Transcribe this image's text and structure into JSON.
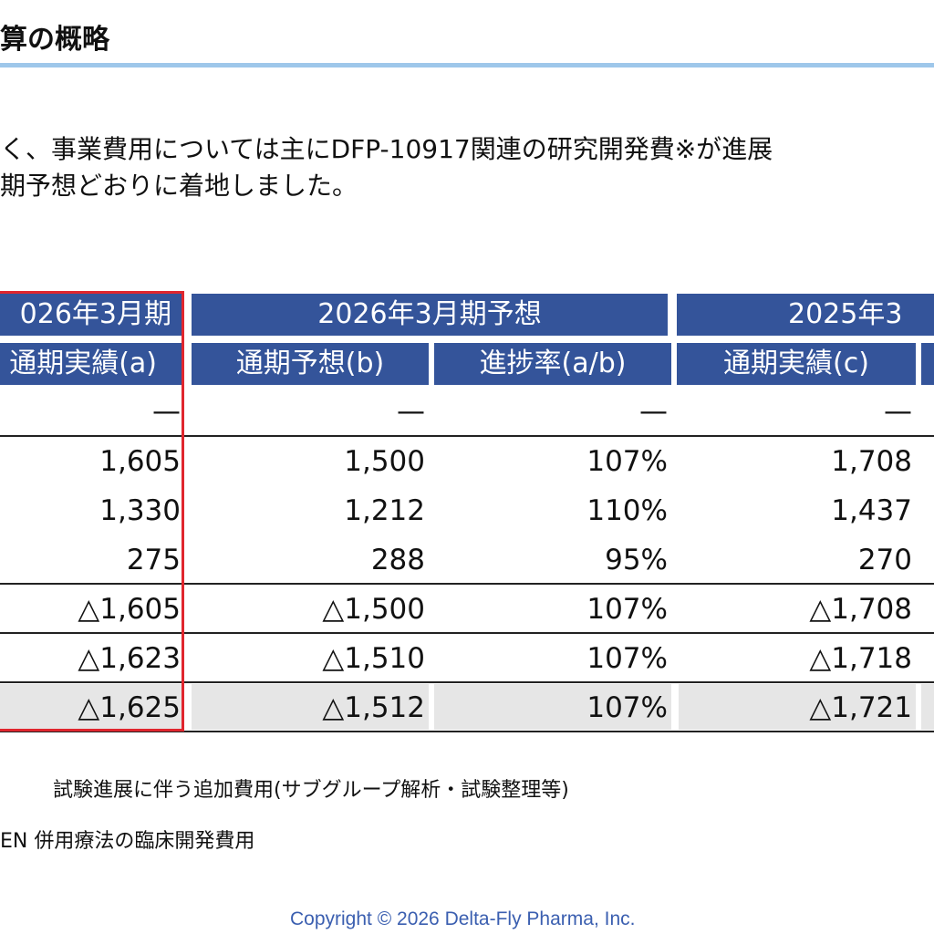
{
  "title": "算の概略",
  "intro": {
    "line1": "く、事業費用については主にDFP-10917関連の研究開発費※が進展",
    "line2": "期予想どおりに着地しました。"
  },
  "table": {
    "group_headers": [
      "026年3月期",
      "2026年3月期予想",
      "2025年3"
    ],
    "sub_headers": [
      "通期実績(a)",
      "通期予想(b)",
      "進捗率(a/b)",
      "通期実績(c)"
    ],
    "rows": [
      [
        "—",
        "—",
        "—",
        "—"
      ],
      [
        "1,605",
        "1,500",
        "107%",
        "1,708"
      ],
      [
        "1,330",
        "1,212",
        "110%",
        "1,437"
      ],
      [
        "275",
        "288",
        "95%",
        "270"
      ],
      [
        "△1,605",
        "△1,500",
        "107%",
        "△1,708"
      ],
      [
        "△1,623",
        "△1,510",
        "107%",
        "△1,718"
      ],
      [
        "△1,625",
        "△1,512",
        "107%",
        "△1,721"
      ]
    ]
  },
  "notes": {
    "note1": "試験進展に伴う追加費用(サブグループ解析・試験整理等)",
    "note2": "EN  併用療法の臨床開発費用"
  },
  "footer": {
    "copyright": "Copyright © 2026  Delta-Fly Pharma, Inc."
  },
  "colors": {
    "header_bg": "#34549a",
    "title_rule": "#9ec7ea",
    "highlight_border": "#e0262e",
    "total_row_bg": "#e6e6e6",
    "copyright_text": "#3b5fb0"
  }
}
